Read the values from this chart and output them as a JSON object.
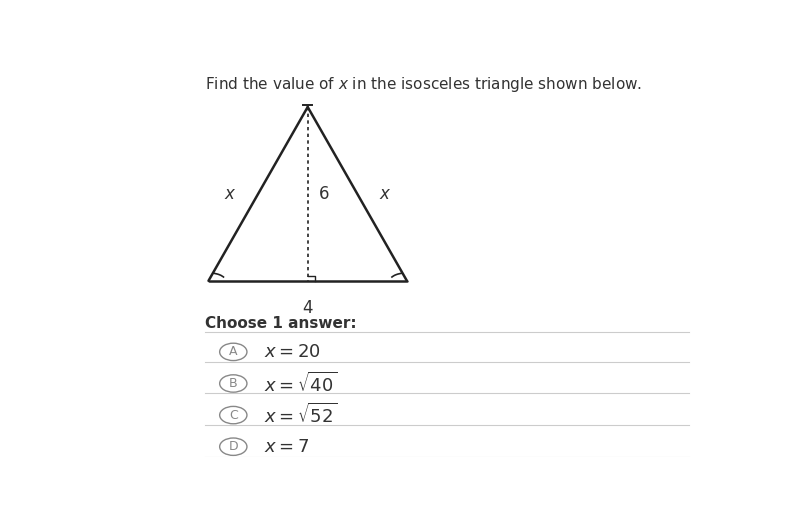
{
  "title": "Find the value of $x$ in the isosceles triangle shown below.",
  "bg_color": "#ffffff",
  "choices": [
    {
      "letter": "A",
      "text": "$x = 20$"
    },
    {
      "letter": "B",
      "text": "$x = \\sqrt{40}$"
    },
    {
      "letter": "C",
      "text": "$x = \\sqrt{52}$"
    },
    {
      "letter": "D",
      "text": "$x = 7$"
    }
  ],
  "choose_text": "Choose 1 answer:",
  "text_color": "#333333",
  "line_color": "#222222",
  "separator_color": "#cccccc",
  "circle_color": "#888888",
  "altitude_label": "6",
  "base_label": "4"
}
